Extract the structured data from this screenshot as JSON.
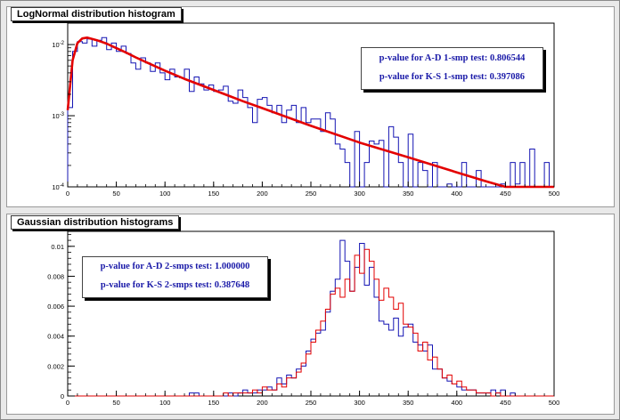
{
  "top_pad": {
    "title": "LogNormal distribution histogram",
    "stats": {
      "ad_label": "p-value for A-D 1-smp test: 0.806544",
      "ks_label": "p-value for K-S 1-smp test: 0.397086"
    }
  },
  "bottom_pad": {
    "title": "Gaussian distribution histograms",
    "stats": {
      "ad_label": "p-value for A-D 2-smps test: 1.000000",
      "ks_label": "p-value for K-S 2-smps test: 0.387648"
    }
  },
  "colors": {
    "hist_blue": "#1515b3",
    "curve_red": "#e30000"
  },
  "chart_data": [
    {
      "type": "line",
      "title": "LogNormal distribution histogram",
      "xlabel": "",
      "ylabel": "",
      "xlim": [
        0,
        500
      ],
      "ylim": [
        0.0001,
        0.02
      ],
      "y_scale": "log",
      "grid": false,
      "x_ticks": [
        0,
        50,
        100,
        150,
        200,
        250,
        300,
        350,
        400,
        450,
        500
      ],
      "y_ticks": [
        {
          "value": 0.01,
          "label": "10^-2"
        },
        {
          "value": 0.001,
          "label": "10^-3"
        },
        {
          "value": 0.0001,
          "label": "10^-4"
        }
      ],
      "series": [
        {
          "kind": "step",
          "color": "#1515b3",
          "bin_width": 5,
          "x": [
            0,
            5,
            10,
            15,
            20,
            25,
            30,
            35,
            40,
            45,
            50,
            55,
            60,
            65,
            70,
            75,
            80,
            85,
            90,
            95,
            100,
            105,
            110,
            115,
            120,
            125,
            130,
            135,
            140,
            145,
            150,
            155,
            160,
            165,
            170,
            175,
            180,
            185,
            190,
            195,
            200,
            205,
            210,
            215,
            220,
            225,
            230,
            235,
            240,
            245,
            250,
            255,
            260,
            265,
            270,
            275,
            280,
            285,
            290,
            295,
            300,
            305,
            310,
            315,
            320,
            325,
            330,
            335,
            340,
            345,
            350,
            355,
            360,
            365,
            370,
            375,
            380,
            385,
            390,
            395,
            400,
            405,
            410,
            415,
            420,
            425,
            430,
            435,
            440,
            445,
            450,
            455,
            460,
            465,
            470,
            475,
            480,
            485,
            490,
            495
          ],
          "values": [
            0.0013,
            0.008,
            0.011,
            0.0105,
            0.012,
            0.0095,
            0.0115,
            0.0125,
            0.0085,
            0.0105,
            0.008,
            0.0095,
            0.0075,
            0.0055,
            0.0045,
            0.0065,
            0.0055,
            0.0042,
            0.0055,
            0.004,
            0.0032,
            0.0045,
            0.0035,
            0.0034,
            0.0045,
            0.0022,
            0.0035,
            0.0028,
            0.0023,
            0.0027,
            0.0022,
            0.0023,
            0.0026,
            0.0016,
            0.0015,
            0.0023,
            0.0018,
            0.0013,
            0.0008,
            0.0017,
            0.0018,
            0.0014,
            0.0011,
            0.0014,
            0.0008,
            0.0012,
            0.0014,
            0.0008,
            0.0013,
            0.0008,
            0.0009,
            0.0009,
            0.0006,
            0.0011,
            0.0009,
            0.0004,
            0.00034,
            0.00022,
            0.0001,
            0.0006,
            0.0001,
            0.00022,
            0.00044,
            0.0004,
            0.00045,
            0.0001,
            0.0007,
            0.0005,
            0.00022,
            0.0001,
            0.00055,
            0.0001,
            0.00022,
            0.00017,
            0.0001,
            0.00022,
            0.0001,
            0.0001,
            0.00011,
            0.0001,
            0.0001,
            0.00022,
            0.0001,
            0.0001,
            0.00017,
            0.0001,
            0.0001,
            0.0001,
            0.0001,
            0.00011,
            0.0001,
            0.00022,
            0.00011,
            0.00022,
            0.0001,
            0.00034,
            0.0001,
            0.0001,
            0.00022,
            0.0001
          ]
        },
        {
          "kind": "curve",
          "color": "#e30000",
          "x": [
            0,
            5,
            10,
            15,
            20,
            25,
            30,
            40,
            50,
            60,
            70,
            80,
            100,
            120,
            150,
            180,
            200,
            250,
            300,
            350,
            400,
            430,
            450,
            480,
            500
          ],
          "values": [
            0.0012,
            0.006,
            0.0105,
            0.0122,
            0.0125,
            0.012,
            0.0115,
            0.0103,
            0.0089,
            0.0077,
            0.0066,
            0.0057,
            0.0043,
            0.0033,
            0.0023,
            0.0016,
            0.00128,
            0.00072,
            0.00042,
            0.00026,
            0.00016,
            0.00012,
            0.0001,
            0.0001,
            0.0001
          ]
        }
      ]
    },
    {
      "type": "line",
      "title": "Gaussian distribution histograms",
      "xlabel": "",
      "ylabel": "",
      "xlim": [
        0,
        500
      ],
      "ylim": [
        0,
        0.011
      ],
      "grid": false,
      "x_ticks": [
        0,
        50,
        100,
        150,
        200,
        250,
        300,
        350,
        400,
        450,
        500
      ],
      "y_ticks": [
        0,
        0.002,
        0.004,
        0.006,
        0.008,
        0.01
      ],
      "series": [
        {
          "kind": "step",
          "color": "#1515b3",
          "bin_width": 5,
          "x": [
            0,
            5,
            10,
            15,
            20,
            25,
            30,
            35,
            40,
            45,
            50,
            55,
            60,
            65,
            70,
            75,
            80,
            85,
            90,
            95,
            100,
            105,
            110,
            115,
            120,
            125,
            130,
            135,
            140,
            145,
            150,
            155,
            160,
            165,
            170,
            175,
            180,
            185,
            190,
            195,
            200,
            205,
            210,
            215,
            220,
            225,
            230,
            235,
            240,
            245,
            250,
            255,
            260,
            265,
            270,
            275,
            280,
            285,
            290,
            295,
            300,
            305,
            310,
            315,
            320,
            325,
            330,
            335,
            340,
            345,
            350,
            355,
            360,
            365,
            370,
            375,
            380,
            385,
            390,
            395,
            400,
            405,
            410,
            415,
            420,
            425,
            430,
            435,
            440,
            445,
            450,
            455,
            460,
            465,
            470,
            475,
            480,
            485,
            490,
            495
          ],
          "values": [
            0,
            0,
            0,
            0,
            0,
            0,
            0,
            0,
            0,
            0,
            0,
            0,
            0,
            0,
            0,
            0,
            0,
            0,
            0,
            0,
            0,
            0,
            0,
            0,
            0,
            0.0002,
            0.0002,
            0,
            0,
            0,
            0,
            0,
            0,
            0.0002,
            0,
            0.0002,
            0.0004,
            0.0002,
            0.0002,
            0.0004,
            0.0004,
            0.0006,
            0.0004,
            0.0012,
            0.0008,
            0.0014,
            0.0012,
            0.0018,
            0.002,
            0.003,
            0.0038,
            0.0042,
            0.0044,
            0.0056,
            0.007,
            0.0078,
            0.0104,
            0.009,
            0.007,
            0.0086,
            0.0102,
            0.0074,
            0.0086,
            0.0066,
            0.005,
            0.0048,
            0.0044,
            0.0052,
            0.004,
            0.0046,
            0.0048,
            0.0036,
            0.0034,
            0.003,
            0.0034,
            0.0018,
            0.0018,
            0.0012,
            0.001,
            0.0008,
            0.0006,
            0.0004,
            0.0004,
            0.0004,
            0.0002,
            0.0002,
            0.0002,
            0.0004,
            0.0002,
            0.0004,
            0,
            0.0002,
            0,
            0,
            0,
            0,
            0,
            0,
            0,
            0
          ]
        },
        {
          "kind": "step",
          "color": "#e30000",
          "bin_width": 5,
          "x": [
            0,
            5,
            10,
            15,
            20,
            25,
            30,
            35,
            40,
            45,
            50,
            55,
            60,
            65,
            70,
            75,
            80,
            85,
            90,
            95,
            100,
            105,
            110,
            115,
            120,
            125,
            130,
            135,
            140,
            145,
            150,
            155,
            160,
            165,
            170,
            175,
            180,
            185,
            190,
            195,
            200,
            205,
            210,
            215,
            220,
            225,
            230,
            235,
            240,
            245,
            250,
            255,
            260,
            265,
            270,
            275,
            280,
            285,
            290,
            295,
            300,
            305,
            310,
            315,
            320,
            325,
            330,
            335,
            340,
            345,
            350,
            355,
            360,
            365,
            370,
            375,
            380,
            385,
            390,
            395,
            400,
            405,
            410,
            415,
            420,
            425,
            430,
            435,
            440,
            445,
            450,
            455,
            460,
            465,
            470,
            475,
            480,
            485,
            490,
            495
          ],
          "values": [
            0,
            0,
            0,
            0,
            0,
            0,
            0,
            0,
            0,
            0,
            0,
            0,
            0,
            0,
            0,
            0,
            0,
            0,
            0,
            0,
            0,
            0,
            0,
            0,
            0,
            0,
            0,
            0,
            0,
            0,
            0,
            0,
            0.0002,
            0,
            0.0002,
            0.0002,
            0.0002,
            0.0002,
            0.0004,
            0.0002,
            0.0006,
            0.0004,
            0.0004,
            0.0008,
            0.0006,
            0.0012,
            0.0012,
            0.0016,
            0.0022,
            0.0028,
            0.0036,
            0.0044,
            0.005,
            0.0058,
            0.0068,
            0.0072,
            0.0066,
            0.0078,
            0.007,
            0.0094,
            0.0082,
            0.0098,
            0.009,
            0.0078,
            0.0064,
            0.0072,
            0.0066,
            0.0058,
            0.0062,
            0.0048,
            0.0046,
            0.0042,
            0.003,
            0.0036,
            0.0024,
            0.0026,
            0.0018,
            0.0012,
            0.0014,
            0.0008,
            0.001,
            0.0006,
            0.0004,
            0.0004,
            0.0002,
            0.0002,
            0.0002,
            0,
            0.0002,
            0,
            0,
            0,
            0,
            0,
            0,
            0,
            0,
            0,
            0,
            0
          ]
        }
      ]
    }
  ]
}
